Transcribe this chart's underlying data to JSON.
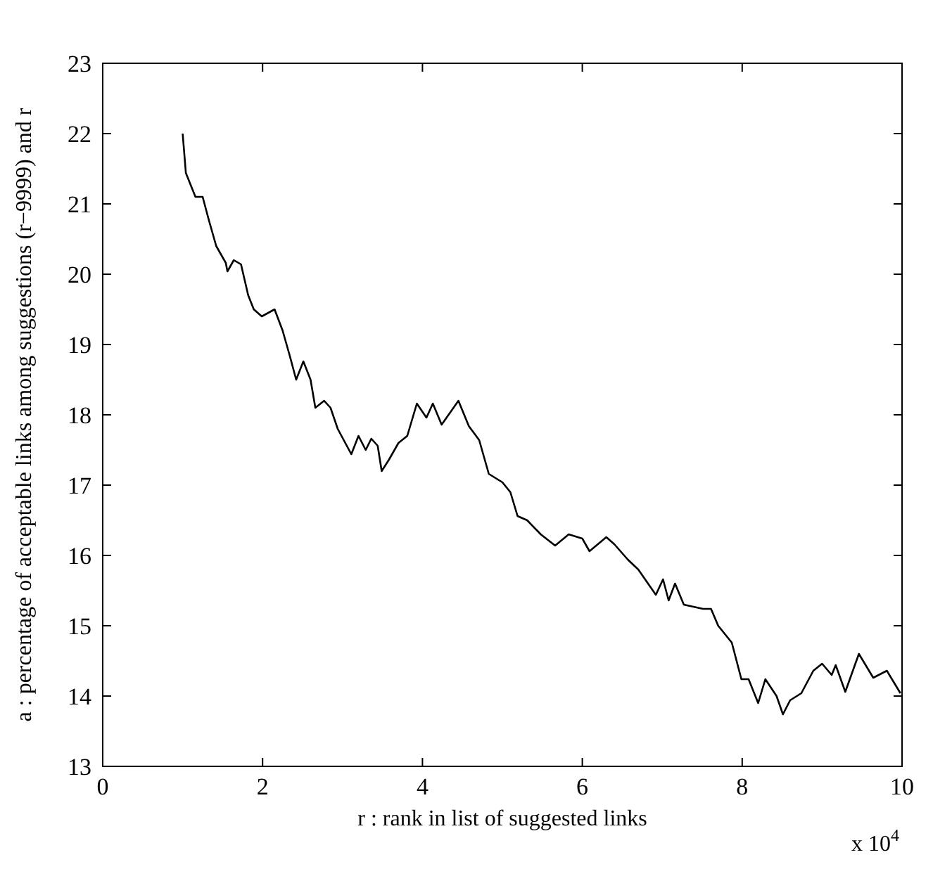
{
  "chart_data": {
    "type": "line",
    "xlabel": "r : rank in list of suggested links",
    "ylabel": "a : percentage of acceptable links among suggestions (r−9999) and r",
    "annotations": [
      "x 10$^{4}$"
    ],
    "xlim": [
      0,
      10
    ],
    "xticks": [
      0,
      2,
      4,
      6,
      8,
      10
    ],
    "ylim": [
      13,
      23
    ],
    "yticks": [
      13,
      14,
      15,
      16,
      17,
      18,
      19,
      20,
      21,
      22,
      23
    ],
    "grid": false,
    "marker": "none",
    "line_style": "solid",
    "series": [
      {
        "color": "#000000",
        "x": [
          1.0,
          1.04,
          1.16,
          1.25,
          1.33,
          1.42,
          1.54,
          1.56,
          1.64,
          1.73,
          1.82,
          1.89,
          1.99,
          2.15,
          2.25,
          2.34,
          2.42,
          2.51,
          2.6,
          2.66,
          2.77,
          2.85,
          2.94,
          3.11,
          3.2,
          3.29,
          3.36,
          3.44,
          3.49,
          3.58,
          3.7,
          3.81,
          3.93,
          4.05,
          4.13,
          4.24,
          4.45,
          4.58,
          4.71,
          4.83,
          5.0,
          5.1,
          5.19,
          5.31,
          5.48,
          5.66,
          5.83,
          6.0,
          6.09,
          6.3,
          6.4,
          6.57,
          6.7,
          6.92,
          7.01,
          7.08,
          7.16,
          7.27,
          7.51,
          7.61,
          7.7,
          7.87,
          7.99,
          8.08,
          8.2,
          8.29,
          8.43,
          8.51,
          8.6,
          8.74,
          8.89,
          9.0,
          9.12,
          9.17,
          9.29,
          9.46,
          9.64,
          9.81,
          9.98
        ],
        "values": [
          22.0,
          21.44,
          21.1,
          21.1,
          20.76,
          20.4,
          20.16,
          20.04,
          20.2,
          20.14,
          19.7,
          19.5,
          19.4,
          19.5,
          19.2,
          18.84,
          18.5,
          18.76,
          18.5,
          18.1,
          18.2,
          18.1,
          17.8,
          17.44,
          17.7,
          17.5,
          17.66,
          17.56,
          17.2,
          17.36,
          17.6,
          17.7,
          18.16,
          17.96,
          18.16,
          17.86,
          18.2,
          17.84,
          17.64,
          17.16,
          17.04,
          16.9,
          16.56,
          16.5,
          16.3,
          16.14,
          16.3,
          16.24,
          16.06,
          16.26,
          16.16,
          15.94,
          15.8,
          15.44,
          15.66,
          15.36,
          15.6,
          15.3,
          15.24,
          15.24,
          15.0,
          14.76,
          14.24,
          14.24,
          13.9,
          14.24,
          14.0,
          13.74,
          13.94,
          14.04,
          14.36,
          14.46,
          14.3,
          14.44,
          14.06,
          14.6,
          14.26,
          14.36,
          14.04
        ]
      }
    ]
  }
}
